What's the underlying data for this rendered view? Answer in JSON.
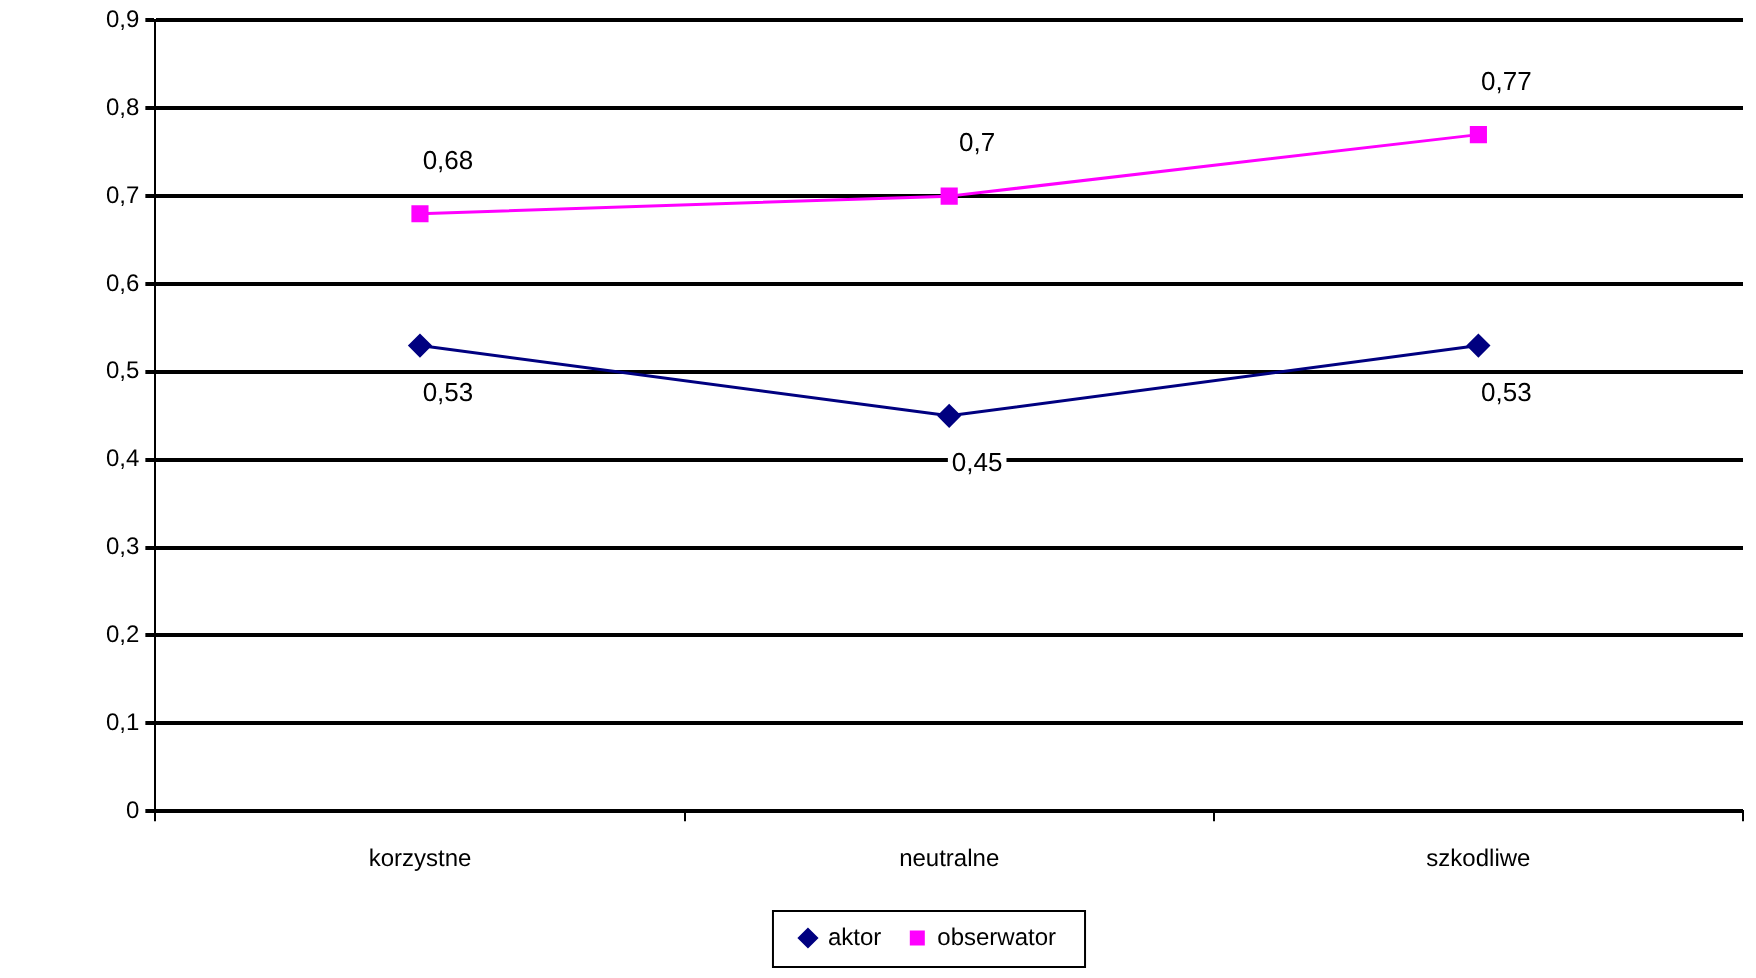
{
  "chart_data": {
    "type": "line",
    "categories": [
      "korzystne",
      "neutralne",
      "szkodliwe"
    ],
    "series": [
      {
        "name": "aktor",
        "color": "#000080",
        "marker": "diamond",
        "values": [
          0.53,
          0.45,
          0.53
        ],
        "value_labels": [
          "0,53",
          "0,45",
          "0,53"
        ]
      },
      {
        "name": "obserwator",
        "color": "#ff00ff",
        "marker": "square",
        "values": [
          0.68,
          0.7,
          0.77
        ],
        "value_labels": [
          "0,68",
          "0,7",
          "0,77"
        ]
      }
    ],
    "ylim": [
      0,
      0.9
    ],
    "yticks": [
      {
        "value": 0,
        "label": "0"
      },
      {
        "value": 0.1,
        "label": "0,1"
      },
      {
        "value": 0.2,
        "label": "0,2"
      },
      {
        "value": 0.3,
        "label": "0,3"
      },
      {
        "value": 0.4,
        "label": "0,4"
      },
      {
        "value": 0.5,
        "label": "0,5"
      },
      {
        "value": 0.6,
        "label": "0,6"
      },
      {
        "value": 0.7,
        "label": "0,7"
      },
      {
        "value": 0.8,
        "label": "0,8"
      },
      {
        "value": 0.9,
        "label": "0,9"
      }
    ],
    "grid": "y",
    "legend": "bottom",
    "line_style": "solid"
  }
}
